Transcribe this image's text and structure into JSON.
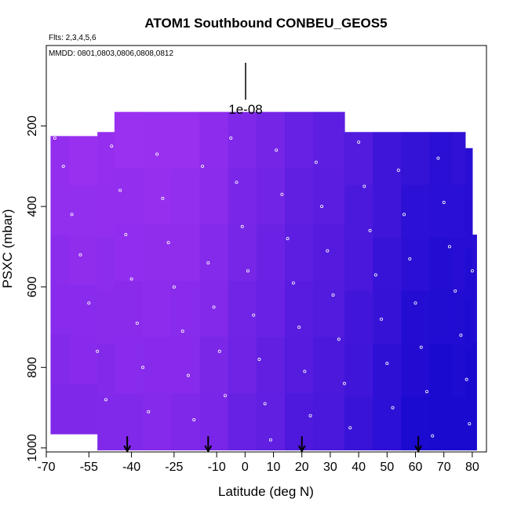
{
  "chart_data": {
    "type": "heatmap",
    "title": "ATOM1 Southbound CONBEU_GEOS5",
    "flights_label": "Flts: 2,3,4,5,6",
    "dates_label": "MMDD: 0801,0803,0806,0808,0812",
    "xlabel": "Latitude (deg N)",
    "ylabel": "PSXC (mbar)",
    "xlim": [
      -70,
      85
    ],
    "ylim": [
      1010,
      0
    ],
    "x_ticks": [
      -70,
      -55,
      -40,
      -25,
      -10,
      0,
      10,
      20,
      30,
      40,
      50,
      60,
      70,
      80
    ],
    "y_ticks": [
      200,
      400,
      600,
      800,
      1000
    ],
    "scale_bar_label": "1e-08",
    "color_low": "#1a0ad0",
    "color_high": "#9a30f0",
    "point_color": "#ffffff",
    "arrow_latitudes": [
      -41.5,
      -13,
      20,
      61
    ],
    "columns": [
      {
        "lat0": -68.5,
        "lat1": -62,
        "p_top": 225,
        "p_bot": 965,
        "level": 0.95
      },
      {
        "lat0": -62,
        "lat1": -52,
        "p_top": 225,
        "p_bot": 965,
        "level": 0.97
      },
      {
        "lat0": -52,
        "lat1": -46,
        "p_top": 215,
        "p_bot": 1005,
        "level": 0.96
      },
      {
        "lat0": -46,
        "lat1": -36,
        "p_top": 165,
        "p_bot": 1005,
        "level": 0.98
      },
      {
        "lat0": -36,
        "lat1": -26,
        "p_top": 165,
        "p_bot": 1005,
        "level": 0.99
      },
      {
        "lat0": -26,
        "lat1": -16,
        "p_top": 165,
        "p_bot": 1005,
        "level": 0.97
      },
      {
        "lat0": -16,
        "lat1": -6,
        "p_top": 165,
        "p_bot": 1005,
        "level": 0.9
      },
      {
        "lat0": -6,
        "lat1": 4,
        "p_top": 165,
        "p_bot": 1005,
        "level": 0.78
      },
      {
        "lat0": 4,
        "lat1": 14,
        "p_top": 165,
        "p_bot": 1005,
        "level": 0.7
      },
      {
        "lat0": 14,
        "lat1": 24,
        "p_top": 165,
        "p_bot": 1005,
        "level": 0.58
      },
      {
        "lat0": 24,
        "lat1": 35,
        "p_top": 165,
        "p_bot": 1005,
        "level": 0.52
      },
      {
        "lat0": 35,
        "lat1": 45,
        "p_top": 215,
        "p_bot": 1005,
        "level": 0.42
      },
      {
        "lat0": 45,
        "lat1": 55,
        "p_top": 215,
        "p_bot": 1005,
        "level": 0.3
      },
      {
        "lat0": 55,
        "lat1": 65,
        "p_top": 215,
        "p_bot": 1005,
        "level": 0.18
      },
      {
        "lat0": 65,
        "lat1": 73,
        "p_top": 215,
        "p_bot": 1005,
        "level": 0.14
      },
      {
        "lat0": 73,
        "lat1": 77.5,
        "p_top": 215,
        "p_bot": 1005,
        "level": 0.16
      },
      {
        "lat0": 77.5,
        "lat1": 80,
        "p_top": 255,
        "p_bot": 1005,
        "level": 0.12
      },
      {
        "lat0": 80,
        "lat1": 81.5,
        "p_top": 470,
        "p_bot": 1005,
        "level": 0.1
      }
    ],
    "sample_points": [
      {
        "x": -67,
        "y": 230
      },
      {
        "x": -64,
        "y": 300
      },
      {
        "x": -61,
        "y": 420
      },
      {
        "x": -58,
        "y": 520
      },
      {
        "x": -55,
        "y": 640
      },
      {
        "x": -52,
        "y": 760
      },
      {
        "x": -49,
        "y": 880
      },
      {
        "x": -47,
        "y": 250
      },
      {
        "x": -44,
        "y": 360
      },
      {
        "x": -42,
        "y": 470
      },
      {
        "x": -40,
        "y": 580
      },
      {
        "x": -38,
        "y": 690
      },
      {
        "x": -36,
        "y": 800
      },
      {
        "x": -34,
        "y": 910
      },
      {
        "x": -31,
        "y": 270
      },
      {
        "x": -29,
        "y": 380
      },
      {
        "x": -27,
        "y": 490
      },
      {
        "x": -25,
        "y": 600
      },
      {
        "x": -22,
        "y": 710
      },
      {
        "x": -20,
        "y": 820
      },
      {
        "x": -18,
        "y": 930
      },
      {
        "x": -15,
        "y": 300
      },
      {
        "x": -13,
        "y": 540
      },
      {
        "x": -11,
        "y": 650
      },
      {
        "x": -9,
        "y": 760
      },
      {
        "x": -7,
        "y": 870
      },
      {
        "x": -5,
        "y": 230
      },
      {
        "x": -3,
        "y": 340
      },
      {
        "x": -1,
        "y": 450
      },
      {
        "x": 1,
        "y": 560
      },
      {
        "x": 3,
        "y": 670
      },
      {
        "x": 5,
        "y": 780
      },
      {
        "x": 7,
        "y": 890
      },
      {
        "x": 9,
        "y": 980
      },
      {
        "x": 11,
        "y": 260
      },
      {
        "x": 13,
        "y": 370
      },
      {
        "x": 15,
        "y": 480
      },
      {
        "x": 17,
        "y": 590
      },
      {
        "x": 19,
        "y": 700
      },
      {
        "x": 21,
        "y": 810
      },
      {
        "x": 23,
        "y": 920
      },
      {
        "x": 25,
        "y": 290
      },
      {
        "x": 27,
        "y": 400
      },
      {
        "x": 29,
        "y": 510
      },
      {
        "x": 31,
        "y": 620
      },
      {
        "x": 33,
        "y": 730
      },
      {
        "x": 35,
        "y": 840
      },
      {
        "x": 37,
        "y": 950
      },
      {
        "x": 40,
        "y": 240
      },
      {
        "x": 42,
        "y": 350
      },
      {
        "x": 44,
        "y": 460
      },
      {
        "x": 46,
        "y": 570
      },
      {
        "x": 48,
        "y": 680
      },
      {
        "x": 50,
        "y": 790
      },
      {
        "x": 52,
        "y": 900
      },
      {
        "x": 54,
        "y": 310
      },
      {
        "x": 56,
        "y": 420
      },
      {
        "x": 58,
        "y": 530
      },
      {
        "x": 60,
        "y": 640
      },
      {
        "x": 62,
        "y": 750
      },
      {
        "x": 64,
        "y": 860
      },
      {
        "x": 66,
        "y": 970
      },
      {
        "x": 68,
        "y": 280
      },
      {
        "x": 70,
        "y": 390
      },
      {
        "x": 72,
        "y": 500
      },
      {
        "x": 74,
        "y": 610
      },
      {
        "x": 76,
        "y": 720
      },
      {
        "x": 78,
        "y": 830
      },
      {
        "x": 79,
        "y": 940
      },
      {
        "x": 80,
        "y": 560
      }
    ]
  }
}
